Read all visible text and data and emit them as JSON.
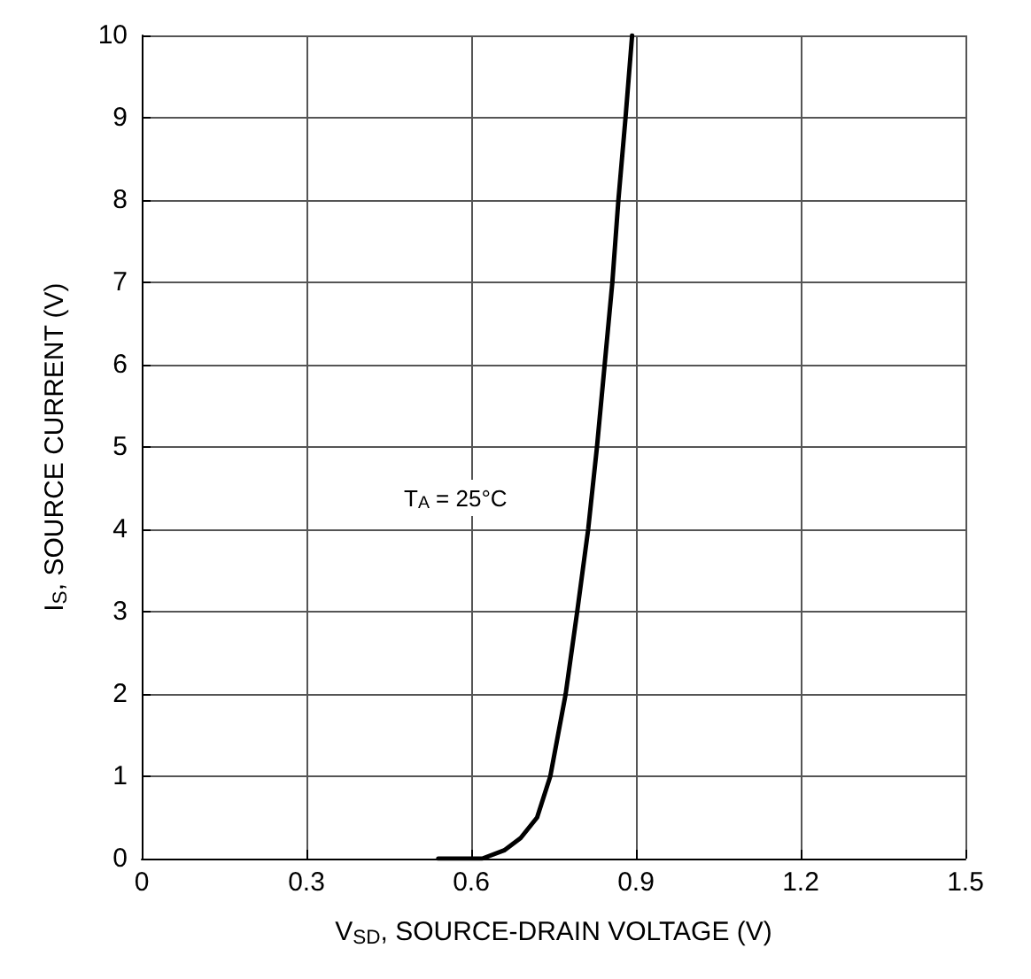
{
  "chart_data": {
    "type": "line",
    "xlabel": "V$_{SD}$, SOURCE-DRAIN VOLTAGE (V)",
    "ylabel": "I$_{S}$, SOURCE CURRENT (V)",
    "series": [
      {
        "color": "#000000",
        "x": [
          0.54,
          0.62,
          0.66,
          0.69,
          0.72,
          0.744,
          0.772,
          0.793,
          0.813,
          0.829,
          0.843,
          0.857,
          0.868,
          0.881,
          0.893
        ],
        "values": [
          0,
          0,
          0.1,
          0.25,
          0.5,
          1,
          2,
          3,
          4,
          5,
          6,
          7,
          8,
          9,
          10
        ]
      }
    ],
    "annotations": [
      "T$_{A}$ = 25°C"
    ],
    "xlim": [
      0,
      1.5
    ],
    "xticks": [
      0,
      0.3,
      0.6,
      0.9,
      1.2,
      1.5
    ],
    "ylim": [
      0,
      10
    ],
    "yticks": [
      0,
      1,
      2,
      3,
      4,
      5,
      6,
      7,
      8,
      9,
      10
    ],
    "grid": true,
    "marker": "none",
    "line_style": "solid"
  }
}
